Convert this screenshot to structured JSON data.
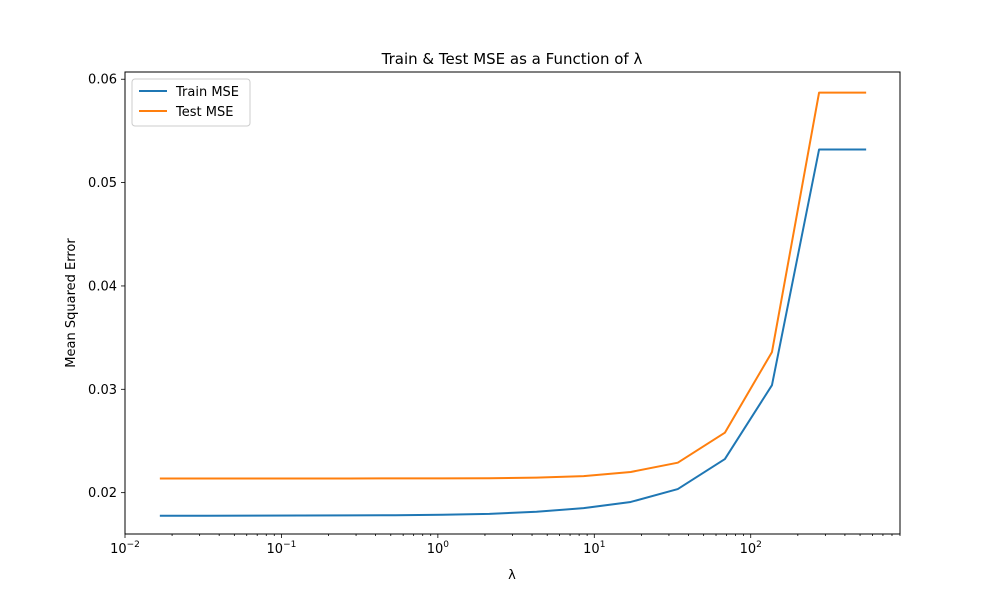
{
  "chart_data": {
    "type": "line",
    "title": "Train & Test MSE as a Function of λ",
    "xlabel": "λ",
    "ylabel": "Mean Squared Error",
    "xscale": "log",
    "xlim": [
      0.01,
      900
    ],
    "ylim": [
      0.016,
      0.0607
    ],
    "xticks": [
      {
        "value": 0.01,
        "base": "10",
        "exp": "−2"
      },
      {
        "value": 0.1,
        "base": "10",
        "exp": "−1"
      },
      {
        "value": 1,
        "base": "10",
        "exp": "0"
      },
      {
        "value": 10,
        "base": "10",
        "exp": "1"
      },
      {
        "value": 100,
        "base": "10",
        "exp": "2"
      }
    ],
    "yticks": [
      {
        "value": 0.02,
        "label": "0.02"
      },
      {
        "value": 0.03,
        "label": "0.03"
      },
      {
        "value": 0.04,
        "label": "0.04"
      },
      {
        "value": 0.05,
        "label": "0.05"
      },
      {
        "value": 0.06,
        "label": "0.06"
      }
    ],
    "grid": false,
    "legend_position": "top-left",
    "x": [
      0.0167,
      0.0334,
      0.0668,
      0.1335,
      0.267,
      0.534,
      1.068,
      2.136,
      4.272,
      8.544,
      17.09,
      34.18,
      68.35,
      136.7,
      273.4,
      546.8
    ],
    "series": [
      {
        "name": "Train MSE",
        "color": "#1f77b4",
        "values": [
          0.01776,
          0.01777,
          0.01778,
          0.01779,
          0.0178,
          0.01782,
          0.01786,
          0.01795,
          0.01815,
          0.0185,
          0.0191,
          0.02035,
          0.02325,
          0.0304,
          0.0532,
          0.0532
        ]
      },
      {
        "name": "Test MSE",
        "color": "#ff7f0e",
        "values": [
          0.02137,
          0.02137,
          0.02137,
          0.02137,
          0.02137,
          0.02138,
          0.02138,
          0.0214,
          0.02145,
          0.0216,
          0.022,
          0.0229,
          0.0258,
          0.0336,
          0.0587,
          0.0587
        ]
      }
    ]
  }
}
